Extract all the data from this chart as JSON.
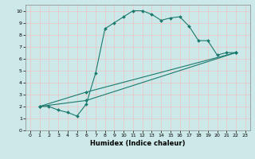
{
  "xlabel": "Humidex (Indice chaleur)",
  "xlim": [
    -0.5,
    23.5
  ],
  "ylim": [
    0,
    10.5
  ],
  "xticks": [
    0,
    1,
    2,
    3,
    4,
    5,
    6,
    7,
    8,
    9,
    10,
    11,
    12,
    13,
    14,
    15,
    16,
    17,
    18,
    19,
    20,
    21,
    22,
    23
  ],
  "yticks": [
    0,
    1,
    2,
    3,
    4,
    5,
    6,
    7,
    8,
    9,
    10
  ],
  "bg_color": "#cce8e8",
  "line_color": "#1a7a6e",
  "grid_color": "#e8c8c8",
  "line1_x": [
    1,
    2,
    3,
    4,
    5,
    6,
    7,
    8,
    9,
    10,
    11,
    12,
    13,
    14,
    15,
    16,
    17,
    18,
    19,
    20,
    21,
    22
  ],
  "line1_y": [
    2,
    2,
    1.7,
    1.5,
    1.2,
    2.2,
    4.8,
    8.5,
    9.0,
    9.5,
    10.0,
    10.0,
    9.7,
    9.2,
    9.4,
    9.5,
    8.7,
    7.5,
    7.5,
    6.3,
    6.5,
    6.5
  ],
  "line2_x": [
    1,
    6,
    22
  ],
  "line2_y": [
    2,
    3.2,
    6.5
  ],
  "line3_x": [
    1,
    6,
    22
  ],
  "line3_y": [
    2,
    2.5,
    6.5
  ]
}
